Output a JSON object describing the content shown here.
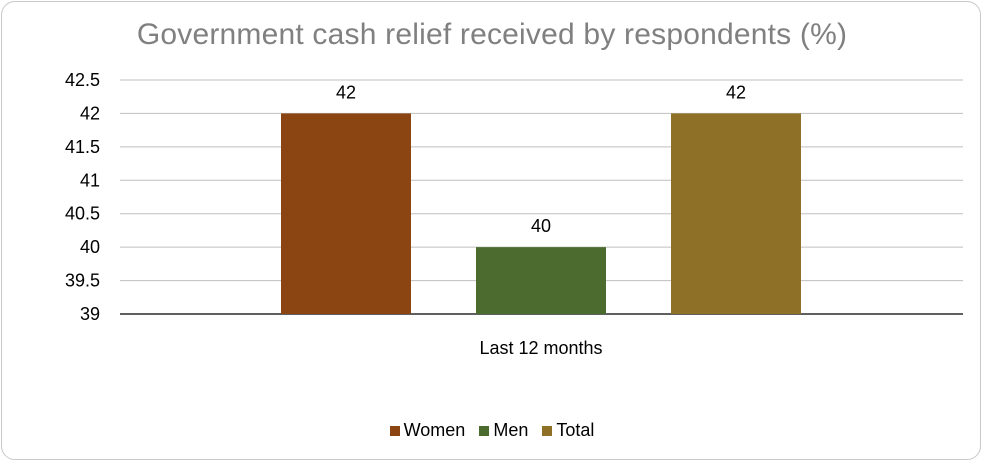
{
  "chart_data": {
    "type": "bar",
    "title": "Government cash relief received by respondents (%)",
    "categories": [
      "Last 12 months"
    ],
    "series": [
      {
        "name": "Women",
        "values": [
          42
        ],
        "color": "#8B4513"
      },
      {
        "name": "Men",
        "values": [
          40
        ],
        "color": "#4B6B2F"
      },
      {
        "name": "Total",
        "values": [
          42
        ],
        "color": "#8E7126"
      }
    ],
    "ylim": [
      39,
      42.5
    ],
    "yticks": [
      "39",
      "39.5",
      "40",
      "40.5",
      "41",
      "41.5",
      "42",
      "42.5"
    ],
    "data_labels": [
      "42",
      "40",
      "42"
    ],
    "grid": true,
    "legend_position": "bottom"
  }
}
